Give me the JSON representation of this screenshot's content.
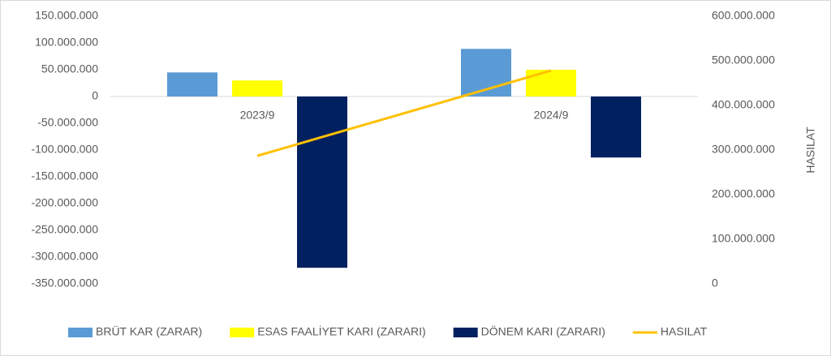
{
  "chart_data": {
    "type": "bar",
    "categories": [
      "2023/9",
      "2024/9"
    ],
    "series": [
      {
        "name": "BRÜT KAR (ZARAR)",
        "color": "#5b9bd5",
        "type": "bar",
        "values": [
          45000000,
          89000000
        ]
      },
      {
        "name": "ESAS FAALİYET KARI (ZARARI)",
        "color": "#ffff00",
        "type": "bar",
        "values": [
          30000000,
          50000000
        ]
      },
      {
        "name": "DÖNEM KARI (ZARARI)",
        "color": "#002060",
        "type": "bar",
        "values": [
          -320000000,
          -114000000
        ]
      },
      {
        "name": "HASILAT",
        "color": "#ffc000",
        "type": "line",
        "axis": "y2",
        "values": [
          287000000,
          478000000
        ]
      }
    ],
    "ylim": [
      -350000000,
      150000000
    ],
    "yticks": [
      {
        "value": -350000000,
        "label": "-350.000.000"
      },
      {
        "value": -300000000,
        "label": "-300.000.000"
      },
      {
        "value": -250000000,
        "label": "-250.000.000"
      },
      {
        "value": -200000000,
        "label": "-200.000.000"
      },
      {
        "value": -150000000,
        "label": "-150.000.000"
      },
      {
        "value": -100000000,
        "label": "-100.000.000"
      },
      {
        "value": -50000000,
        "label": "-50.000.000"
      },
      0,
      {
        "value": 50000000,
        "label": "50.000.000"
      },
      {
        "value": 100000000,
        "label": "100.000.000"
      },
      {
        "value": 150000000,
        "label": "150.000.000"
      }
    ],
    "y2lim": [
      0,
      600000000
    ],
    "y2ticks": [
      0,
      {
        "value": 100000000,
        "label": "100.000.000"
      },
      {
        "value": 200000000,
        "label": "200.000.000"
      },
      {
        "value": 300000000,
        "label": "300.000.000"
      },
      {
        "value": 400000000,
        "label": "400.000.000"
      },
      {
        "value": 500000000,
        "label": "500.000.000"
      },
      {
        "value": 600000000,
        "label": "600.000.000"
      }
    ],
    "y2label": "HASILAT",
    "legend": "bottom"
  }
}
